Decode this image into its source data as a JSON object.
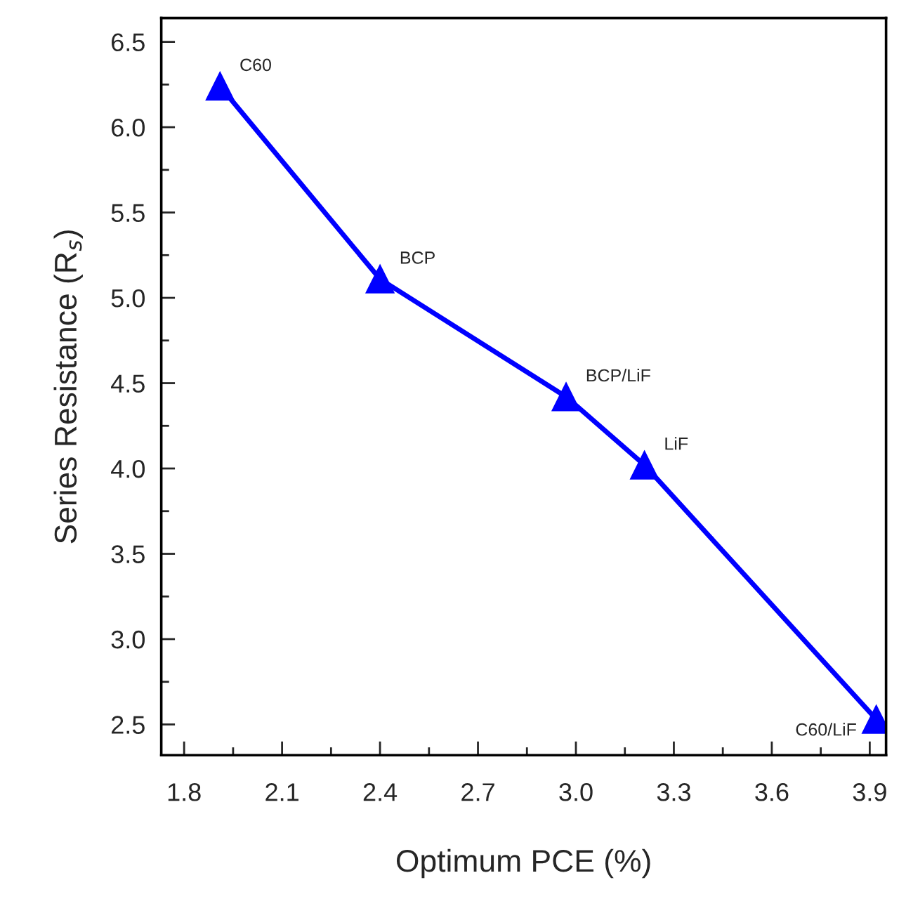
{
  "chart_data": {
    "type": "line",
    "xlabel": "Optimum PCE (%)",
    "ylabel": "Series Resistance (R$_{s}$)",
    "x": [
      1.91,
      2.4,
      2.97,
      3.21,
      3.92
    ],
    "series": [
      {
        "color": "#0000ff",
        "values": [
          6.24,
          5.11,
          4.42,
          4.02,
          2.53
        ]
      }
    ],
    "marker": "triangle",
    "line_style": "solid",
    "grid": false,
    "xlim": [
      1.73,
      3.95
    ],
    "xticks": [
      {
        "value": 1.8,
        "label": "1.8"
      },
      {
        "value": 2.1,
        "label": "2.1"
      },
      {
        "value": 2.4,
        "label": "2.4"
      },
      {
        "value": 2.7,
        "label": "2.7"
      },
      {
        "value": 3.0,
        "label": "3.0"
      },
      {
        "value": 3.3,
        "label": "3.3"
      },
      {
        "value": 3.6,
        "label": "3.6"
      },
      {
        "value": 3.9,
        "label": "3.9"
      }
    ],
    "ylim": [
      2.32,
      6.64
    ],
    "yticks": [
      2.5,
      {
        "value": 3.0,
        "label": "3.0"
      },
      3.5,
      {
        "value": 4.0,
        "label": "4.0"
      },
      4.5,
      {
        "value": 5.0,
        "label": "5.0"
      },
      5.5,
      {
        "value": 6.0,
        "label": "6.0"
      },
      6.5
    ],
    "annotations": [
      {
        "text": "C60",
        "x": 1.91,
        "y": 6.24
      },
      {
        "text": "BCP",
        "x": 2.4,
        "y": 5.11
      },
      {
        "text": "BCP/LiF",
        "x": 2.97,
        "y": 4.42
      },
      {
        "text": "LiF",
        "x": 3.21,
        "y": 4.02
      },
      {
        "text": "C60/LiF",
        "x": 3.92,
        "y": 2.53
      }
    ]
  }
}
